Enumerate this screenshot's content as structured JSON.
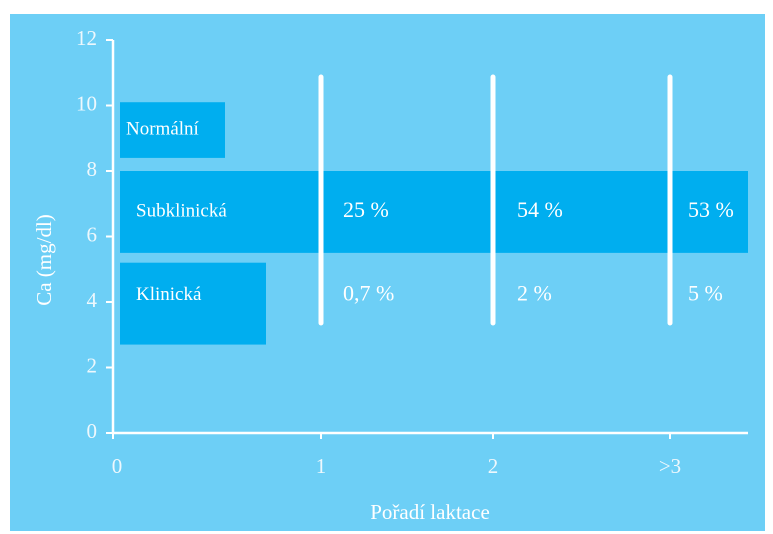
{
  "chart_data": {
    "type": "band",
    "ylabel": "Ca (mg/dl)",
    "xlabel": "Pořadí laktace",
    "categories": [
      "0",
      "1",
      "2",
      ">3"
    ],
    "ylim": [
      0,
      12
    ],
    "yticks": [
      0,
      2,
      4,
      6,
      8,
      10,
      12
    ],
    "background": "#6dcff6",
    "band_color": "#00aeef",
    "bands": [
      {
        "name": "Normální",
        "range": [
          8.4,
          10.1
        ],
        "labels": []
      },
      {
        "name": "Subklinická",
        "range": [
          5.5,
          8.0
        ],
        "labels": [
          "25 %",
          "54 %",
          "53 %"
        ]
      },
      {
        "name": "Klinická",
        "range": [
          2.7,
          5.2
        ],
        "labels": [
          "0,7 %",
          "2 %",
          "5 %"
        ]
      }
    ]
  }
}
